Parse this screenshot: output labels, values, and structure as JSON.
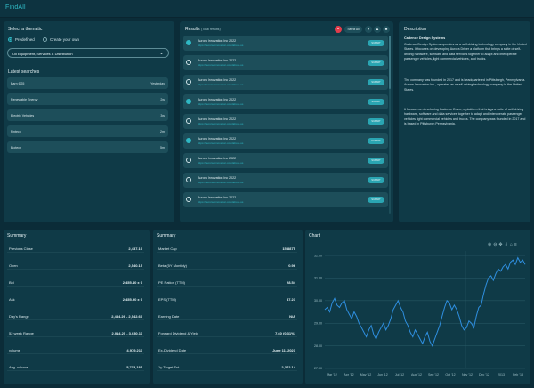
{
  "app": {
    "brand": "FindAll"
  },
  "thematic": {
    "title": "Select a thematic",
    "options": [
      "Predefined",
      "Create your own"
    ],
    "selected_index": 0,
    "select_value": "Oil Equipment, Services & Distribution"
  },
  "latest_searches": {
    "title": "Latest searches",
    "rows": [
      {
        "label": "Barn 6G5",
        "value": "Yesterday"
      },
      {
        "label": "Renewable Energy",
        "value": "2w"
      },
      {
        "label": "Electric Vehicles",
        "value": "3w"
      },
      {
        "label": "Fintech",
        "value": "2m"
      },
      {
        "label": "Biotech",
        "value": "5m"
      }
    ]
  },
  "results": {
    "title": "Results",
    "count": "(Total results)",
    "select_all": "Select All",
    "action_label": "SUBMIT",
    "items": [
      {
        "name": "Aurora Innovation Inc 2022",
        "url": "https://aurora-innovation.com/about-us",
        "checked": true
      },
      {
        "name": "Aurora Innovation Inc 2022",
        "url": "https://aurora-innovation.com/about-us",
        "checked": false
      },
      {
        "name": "Aurora Innovation Inc 2022",
        "url": "https://aurora-innovation.com/about-us",
        "checked": false
      },
      {
        "name": "Aurora Innovation Inc 2022",
        "url": "https://aurora-innovation.com/about-us",
        "checked": true
      },
      {
        "name": "Aurora Innovation Inc 2022",
        "url": "https://aurora-innovation.com/about-us",
        "checked": false
      },
      {
        "name": "Aurora Innovation Inc 2022",
        "url": "https://aurora-innovation.com/about-us",
        "checked": true
      },
      {
        "name": "Aurora Innovation Inc 2022",
        "url": "https://aurora-innovation.com/about-us",
        "checked": false
      },
      {
        "name": "Aurora Innovation Inc 2022",
        "url": "https://aurora-innovation.com/about-us",
        "checked": false
      },
      {
        "name": "Aurora Innovation Inc 2022",
        "url": "https://aurora-innovation.com/about-us",
        "checked": false
      }
    ]
  },
  "description": {
    "title": "Description",
    "company": "Cadence Design Systems",
    "p1": "Cadence Design Systems operates as a self-driving technology company in the United States. It focuses on developing Aurora Driver a platform that brings a suite of self-driving hardware, software and data services together to adapt and interoperate passenger vehicles, light commercial vehicles, and trucks.",
    "p2": "The company was founded in 2017 and is headquartered in Pittsburgh, Pennsylvania. Aurora Innovation Inc., operates as a self-driving technology company in the United States.",
    "p3": "It focuses on developing Cadence Driver, a platform that brings a suite of self-driving hardware, software and data services together to adapt and interoperate passenger vehicles light commercial vehicles and trucks. The company was founded in 2017 and is based in Pittsburgh Pennsylvania."
  },
  "summary1": {
    "title": "Summary",
    "rows": [
      {
        "k": "Previous Close",
        "v": "2,437.10"
      },
      {
        "k": "Open",
        "v": "2,540.15"
      },
      {
        "k": "Bid",
        "v": "2,455.40 x 0"
      },
      {
        "k": "Ask",
        "v": "2,455.90 x 0"
      },
      {
        "k": "Day's Range",
        "v": "2,484.26 - 2,542.60"
      },
      {
        "k": "52 week Range",
        "v": "2,014.25 - 3,030.11"
      },
      {
        "k": "volume",
        "v": "4,979,211"
      },
      {
        "k": "Avg. volume",
        "v": "5,713,185"
      }
    ]
  },
  "summary2": {
    "title": "Summary",
    "rows": [
      {
        "k": "Market Cap",
        "v": "15.887T"
      },
      {
        "k": "Beta (5Y Monthly)",
        "v": "0.96"
      },
      {
        "k": "PE Ration (TTM)",
        "v": "28.54"
      },
      {
        "k": "EPS (TTM)",
        "v": "87.23"
      },
      {
        "k": "Earning Date",
        "v": "N/A"
      },
      {
        "k": "Forward Dividend & Yield",
        "v": "7.60 (0.31%)"
      },
      {
        "k": "Ex-Dividend Date",
        "v": "June 11, 2021"
      },
      {
        "k": "1y Target Est.",
        "v": "2,372.14"
      }
    ]
  },
  "chart": {
    "title": "Chart",
    "line_color": "#2f8fe0",
    "toolbar_icons": [
      "zoom-in-icon",
      "zoom-out-icon",
      "pan-icon",
      "download-icon",
      "home-icon",
      "menu-icon"
    ]
  },
  "chart_data": {
    "type": "line",
    "x_labels": [
      "Mar '12",
      "Apr '12",
      "May '12",
      "Jun '12",
      "Jul '12",
      "Aug '12",
      "Sep '12",
      "Oct '12",
      "Nov '12",
      "Dec '12",
      "2013",
      "Feb '13"
    ],
    "y_ticks": [
      27.0,
      28.0,
      29.0,
      30.0,
      31.0,
      32.0
    ],
    "ylim": [
      27.0,
      32.2
    ],
    "values": [
      29.6,
      29.7,
      29.5,
      29.9,
      30.1,
      29.8,
      29.7,
      29.9,
      30.0,
      29.6,
      29.4,
      29.2,
      29.5,
      29.3,
      29.0,
      28.8,
      28.6,
      28.4,
      28.7,
      28.9,
      28.5,
      28.3,
      28.6,
      28.8,
      29.0,
      28.7,
      28.9,
      29.2,
      29.6,
      29.8,
      30.0,
      29.7,
      29.5,
      29.1,
      28.9,
      28.6,
      28.4,
      28.7,
      28.5,
      28.3,
      28.1,
      28.4,
      28.6,
      28.2,
      28.0,
      28.3,
      28.6,
      28.9,
      29.3,
      29.7,
      30.0,
      29.9,
      29.6,
      29.8,
      29.6,
      29.3,
      28.9,
      28.7,
      28.8,
      29.1,
      29.0,
      28.8,
      29.3,
      29.7,
      29.8,
      30.3,
      30.7,
      31.0,
      31.1,
      30.9,
      31.2,
      31.4,
      31.3,
      31.5,
      31.6,
      31.4,
      31.7,
      31.8,
      31.6,
      31.9,
      31.7,
      31.8,
      31.6
    ]
  }
}
